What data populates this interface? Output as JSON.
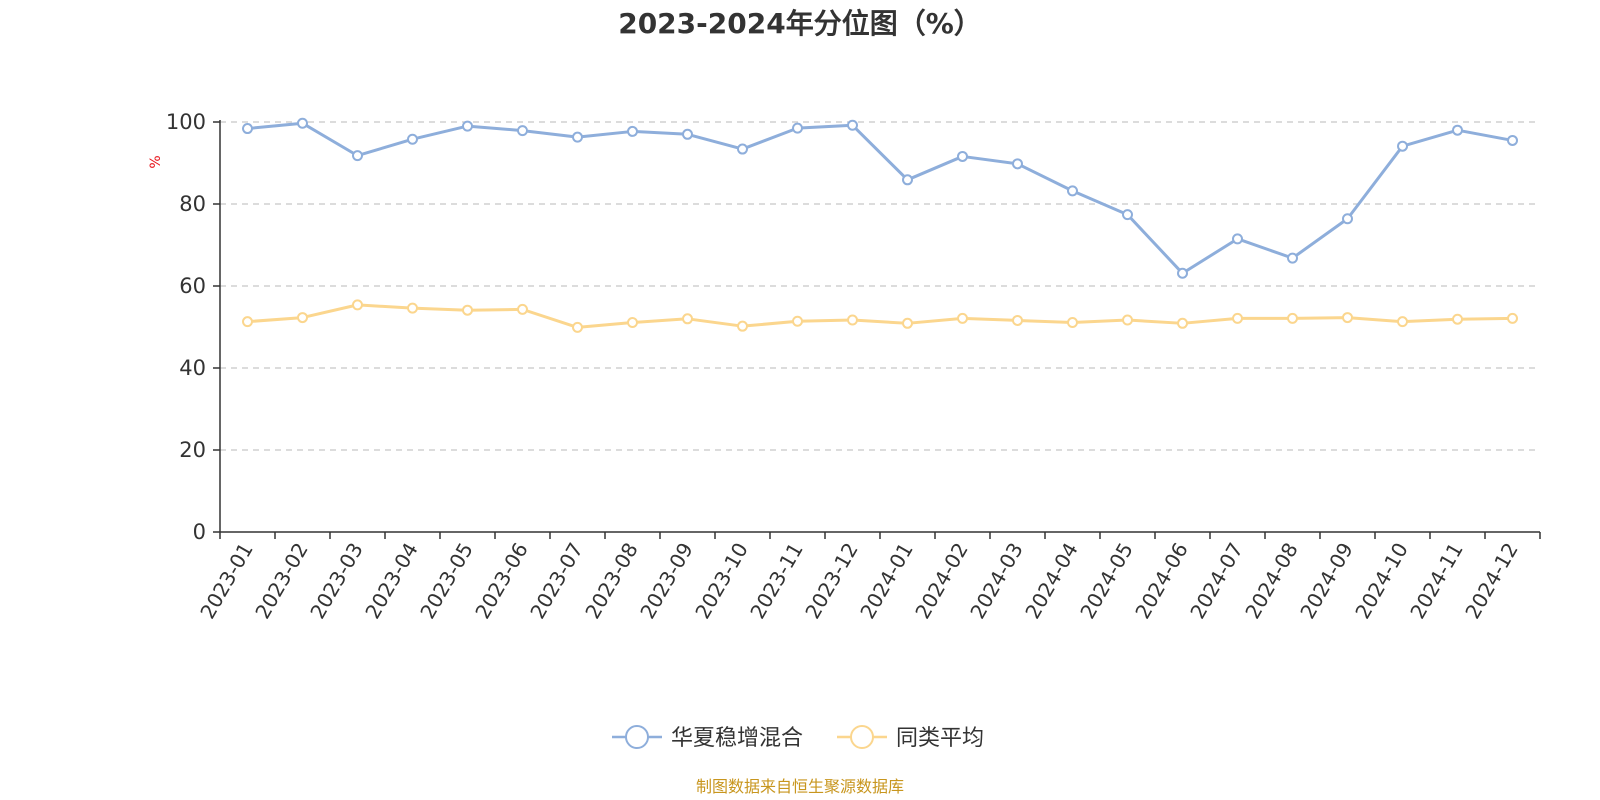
{
  "chart_data": {
    "type": "line",
    "title": "2023-2024年分位图（%）",
    "ylabel": "%",
    "xlabel": "",
    "ylim": [
      0,
      100
    ],
    "yticks": [
      0,
      20,
      40,
      60,
      80,
      100
    ],
    "grid": true,
    "legend_position": "bottom",
    "categories": [
      "2023-01",
      "2023-02",
      "2023-03",
      "2023-04",
      "2023-05",
      "2023-06",
      "2023-07",
      "2023-08",
      "2023-09",
      "2023-10",
      "2023-11",
      "2023-12",
      "2024-01",
      "2024-02",
      "2024-03",
      "2024-04",
      "2024-05",
      "2024-06",
      "2024-07",
      "2024-08",
      "2024-09",
      "2024-10",
      "2024-11",
      "2024-12"
    ],
    "series": [
      {
        "name": "华夏稳增混合",
        "color": "#8eaedb",
        "values": [
          98.4,
          99.7,
          91.8,
          95.8,
          99.0,
          97.9,
          96.3,
          97.7,
          97.0,
          93.4,
          98.5,
          99.2,
          85.9,
          91.6,
          89.8,
          83.2,
          77.4,
          63.1,
          71.5,
          66.8,
          76.4,
          94.1,
          98.0,
          95.5
        ]
      },
      {
        "name": "同类平均",
        "color": "#fbd68e",
        "values": [
          51.3,
          52.3,
          55.4,
          54.6,
          54.1,
          54.3,
          49.9,
          51.1,
          52.0,
          50.2,
          51.4,
          51.7,
          50.9,
          52.1,
          51.6,
          51.1,
          51.7,
          50.9,
          52.1,
          52.1,
          52.3,
          51.3,
          51.9,
          52.1
        ]
      }
    ],
    "source": "制图数据来自恒生聚源数据库"
  }
}
